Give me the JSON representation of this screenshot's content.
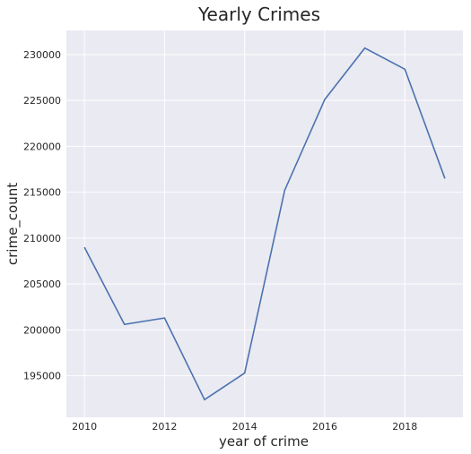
{
  "chart_data": {
    "type": "line",
    "title": "Yearly Crimes",
    "xlabel": "year of crime",
    "ylabel": "crime_count",
    "x": [
      2010,
      2011,
      2012,
      2013,
      2014,
      2015,
      2016,
      2017,
      2018,
      2019
    ],
    "series": [
      {
        "values": [
          209000,
          200600,
          201300,
          192400,
          195300,
          215200,
          225100,
          230700,
          228400,
          216500
        ]
      }
    ],
    "xticks": [
      "2010",
      "2012",
      "2014",
      "2016",
      "2018"
    ],
    "yticks": [
      "195000",
      "200000",
      "205000",
      "210000",
      "215000",
      "220000",
      "225000",
      "230000"
    ],
    "xlim": [
      2009.55,
      2019.45
    ],
    "ylim": [
      190480,
      232620
    ],
    "grid": true,
    "colors": {
      "background": "#eaeaf2",
      "grid": "#ffffff",
      "line": "#4c72b0"
    }
  }
}
